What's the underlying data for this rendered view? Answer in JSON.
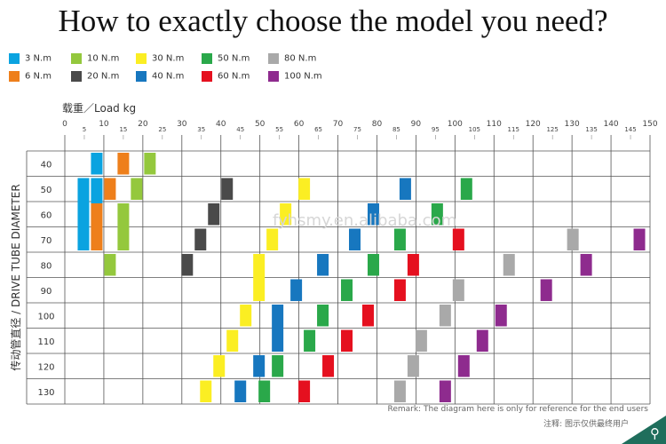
{
  "title": "How to exactly choose the model you need?",
  "legend": [
    {
      "label": "3 N.m",
      "color": "#0aa3e0"
    },
    {
      "label": "10 N.m",
      "color": "#94c83d"
    },
    {
      "label": "30 N.m",
      "color": "#fbee23"
    },
    {
      "label": "50 N.m",
      "color": "#2aa84a"
    },
    {
      "label": "80 N.m",
      "color": "#a9a9a9"
    },
    {
      "label": "6 N.m",
      "color": "#ee7f1b"
    },
    {
      "label": "20 N.m",
      "color": "#4a4a4a"
    },
    {
      "label": "40 N.m",
      "color": "#1777bf"
    },
    {
      "label": "60 N.m",
      "color": "#e5101f"
    },
    {
      "label": "100 N.m",
      "color": "#8e2b8e"
    }
  ],
  "remark": "Remark: The diagram here is only for reference for the end users",
  "remark_cn": "注释: 图示仅供最终用户",
  "watermark": "fyhsmy.en.alibaba.com",
  "search_icon": "search-icon",
  "chart_data": {
    "type": "heatmap",
    "xlabel": "载重／Load kg",
    "ylabel": "传动管直径 / DRIVE TUBE DIAMETER",
    "x_ticks": [
      0,
      5,
      10,
      15,
      20,
      25,
      30,
      35,
      40,
      45,
      50,
      55,
      60,
      65,
      70,
      75,
      80,
      85,
      90,
      95,
      100,
      105,
      110,
      115,
      120,
      125,
      130,
      135,
      140,
      145,
      150
    ],
    "xlim": [
      0,
      150
    ],
    "rows": [
      "40",
      "50",
      "60",
      "70",
      "80",
      "90",
      "100",
      "110",
      "120",
      "130"
    ],
    "grid": true,
    "bars": [
      {
        "torque": "3 N.m",
        "color": "#0aa3e0",
        "segments": [
          {
            "x": 12,
            "row_from": 0,
            "row_to": 0
          },
          {
            "x": 7,
            "row_from": 1,
            "row_to": 3
          },
          {
            "x": 12,
            "row_from": 1,
            "row_to": 3
          }
        ]
      },
      {
        "torque": "6 N.m",
        "color": "#ee7f1b",
        "segments": [
          {
            "x": 22,
            "row_from": 0,
            "row_to": 0
          },
          {
            "x": 17,
            "row_from": 1,
            "row_to": 1
          },
          {
            "x": 12,
            "row_from": 2,
            "row_to": 3
          }
        ]
      },
      {
        "torque": "10 N.m",
        "color": "#94c83d",
        "segments": [
          {
            "x": 32,
            "row_from": 0,
            "row_to": 0
          },
          {
            "x": 27,
            "row_from": 1,
            "row_to": 1
          },
          {
            "x": 22,
            "row_from": 2,
            "row_to": 3
          },
          {
            "x": 17,
            "row_from": 4,
            "row_to": 4
          }
        ]
      },
      {
        "torque": "20 N.m",
        "color": "#4a4a4a",
        "segments": [
          {
            "x": 61,
            "row_from": 1,
            "row_to": 1
          },
          {
            "x": 56,
            "row_from": 2,
            "row_to": 2
          },
          {
            "x": 51,
            "row_from": 3,
            "row_to": 3
          },
          {
            "x": 46,
            "row_from": 4,
            "row_to": 4
          }
        ]
      },
      {
        "torque": "30 N.m",
        "color": "#fbee23",
        "segments": [
          {
            "x": 90,
            "row_from": 1,
            "row_to": 1
          },
          {
            "x": 83,
            "row_from": 2,
            "row_to": 2
          },
          {
            "x": 78,
            "row_from": 3,
            "row_to": 3
          },
          {
            "x": 73,
            "row_from": 4,
            "row_to": 5
          },
          {
            "x": 68,
            "row_from": 6,
            "row_to": 6
          },
          {
            "x": 63,
            "row_from": 7,
            "row_to": 7
          },
          {
            "x": 58,
            "row_from": 8,
            "row_to": 8
          },
          {
            "x": 53,
            "row_from": 9,
            "row_to": 9
          }
        ]
      },
      {
        "torque": "40 N.m",
        "color": "#1777bf",
        "segments": [
          {
            "x": 128,
            "row_from": 1,
            "row_to": 1
          },
          {
            "x": 116,
            "row_from": 2,
            "row_to": 2
          },
          {
            "x": 109,
            "row_from": 3,
            "row_to": 3
          },
          {
            "x": 97,
            "row_from": 4,
            "row_to": 4
          },
          {
            "x": 87,
            "row_from": 5,
            "row_to": 5
          },
          {
            "x": 80,
            "row_from": 6,
            "row_to": 7
          },
          {
            "x": 73,
            "row_from": 8,
            "row_to": 8
          },
          {
            "x": 66,
            "row_from": 9,
            "row_to": 9
          }
        ]
      },
      {
        "torque": "50 N.m",
        "color": "#2aa84a",
        "segments": [
          {
            "x": 151,
            "row_from": 1,
            "row_to": 1
          },
          {
            "x": 140,
            "row_from": 2,
            "row_to": 2
          },
          {
            "x": 126,
            "row_from": 3,
            "row_to": 3
          },
          {
            "x": 116,
            "row_from": 4,
            "row_to": 4
          },
          {
            "x": 106,
            "row_from": 5,
            "row_to": 5
          },
          {
            "x": 97,
            "row_from": 6,
            "row_to": 6
          },
          {
            "x": 92,
            "row_from": 7,
            "row_to": 7
          },
          {
            "x": 80,
            "row_from": 8,
            "row_to": 8
          },
          {
            "x": 75,
            "row_from": 9,
            "row_to": 9
          }
        ]
      },
      {
        "torque": "60 N.m",
        "color": "#e5101f",
        "segments": [
          {
            "x": 148,
            "row_from": 3,
            "row_to": 3
          },
          {
            "x": 131,
            "row_from": 4,
            "row_to": 4
          },
          {
            "x": 126,
            "row_from": 5,
            "row_to": 5
          },
          {
            "x": 114,
            "row_from": 6,
            "row_to": 6
          },
          {
            "x": 106,
            "row_from": 7,
            "row_to": 7
          },
          {
            "x": 99,
            "row_from": 8,
            "row_to": 8
          },
          {
            "x": 90,
            "row_from": 9,
            "row_to": 9
          }
        ]
      },
      {
        "torque": "80 N.m",
        "color": "#a9a9a9",
        "segments": [
          {
            "x": 191,
            "row_from": 3,
            "row_to": 3
          },
          {
            "x": 167,
            "row_from": 4,
            "row_to": 4
          },
          {
            "x": 148,
            "row_from": 5,
            "row_to": 5
          },
          {
            "x": 143,
            "row_from": 6,
            "row_to": 6
          },
          {
            "x": 134,
            "row_from": 7,
            "row_to": 7
          },
          {
            "x": 131,
            "row_from": 8,
            "row_to": 8
          },
          {
            "x": 126,
            "row_from": 9,
            "row_to": 9
          }
        ]
      },
      {
        "torque": "100 N.m",
        "color": "#8e2b8e",
        "segments": [
          {
            "x": 216,
            "row_from": 3,
            "row_to": 3
          },
          {
            "x": 196,
            "row_from": 4,
            "row_to": 4
          },
          {
            "x": 181,
            "row_from": 5,
            "row_to": 5
          },
          {
            "x": 164,
            "row_from": 6,
            "row_to": 6
          },
          {
            "x": 157,
            "row_from": 7,
            "row_to": 7
          },
          {
            "x": 150,
            "row_from": 8,
            "row_to": 8
          },
          {
            "x": 143,
            "row_from": 9,
            "row_to": 9
          }
        ]
      }
    ]
  }
}
